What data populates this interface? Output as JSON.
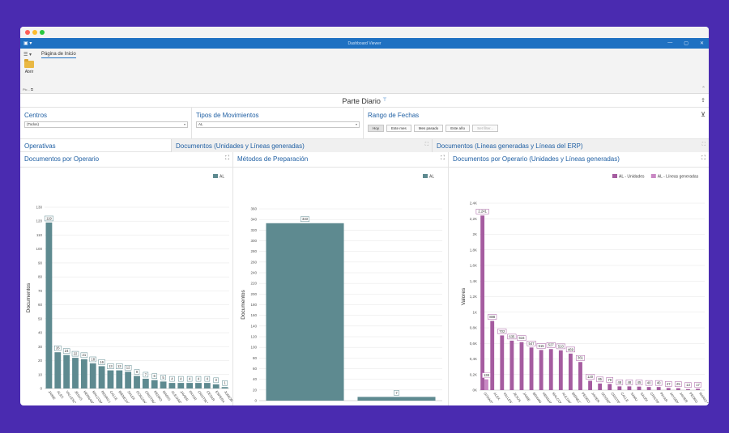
{
  "window": {
    "title": "Dashboard Viewer",
    "controls": [
      "—",
      "▢",
      "✕"
    ]
  },
  "ribbon": {
    "tab": "Página de Inicio",
    "open_label": "Abrir",
    "group_label": "Pic... ⧉"
  },
  "dashboard": {
    "title": "Parte Diario",
    "filter_glyph": "⊤"
  },
  "filters": {
    "centros": {
      "label": "Centros",
      "value": "(Todos)"
    },
    "tipos": {
      "label": "Tipos de Movimientos",
      "value": "AL"
    },
    "rango": {
      "label": "Rango de Fechas",
      "buttons": [
        "Hoy",
        "Este mes",
        "Mes pasado",
        "Este año",
        "Set filter..."
      ]
    }
  },
  "tabs": [
    {
      "label": "Operativas"
    },
    {
      "label": "Documentos (Unidades y Líneas generadas)"
    },
    {
      "label": "Documentos (Líneas generadas y Líneas del ERP)"
    }
  ],
  "colors": {
    "teal": "#5e8a90",
    "purple": "#a55ca0",
    "purple2": "#c988c4",
    "accent": "#1f71c2"
  },
  "chart_data": [
    {
      "type": "bar",
      "title": "Documentos por Operario",
      "ylabel": "Documentos",
      "ylim": [
        0,
        130
      ],
      "yticks": [
        0,
        10,
        20,
        30,
        40,
        50,
        60,
        70,
        80,
        90,
        100,
        110,
        120,
        130
      ],
      "categories": [
        "JAIME",
        "ALEX",
        "VALLESOL",
        "JESUS",
        "HERNANDOS",
        "MALCOM",
        "PEDRO LOPEZ",
        "CALLE",
        "BIENEZAR",
        "SAUDI",
        "GONZANTINO",
        "CRISTINA",
        "PEDRO",
        "MARIO",
        "ALEJANDRO",
        "JAVIER",
        "PAYAR",
        "CRISTIN NUÑEZ",
        "CESAR",
        "ESPERA",
        "JUNIOR"
      ],
      "series": [
        {
          "name": "AL",
          "values": [
            119,
            26,
            24,
            22,
            21,
            18,
            16,
            13,
            13,
            12,
            9,
            7,
            6,
            5,
            4,
            4,
            4,
            4,
            4,
            3,
            1
          ]
        }
      ]
    },
    {
      "type": "bar",
      "title": "Métodos de Preparación",
      "ylabel": "Documentos",
      "ylim": [
        0,
        360
      ],
      "yticks": [
        0,
        20,
        40,
        60,
        80,
        100,
        120,
        140,
        160,
        180,
        200,
        220,
        240,
        260,
        280,
        300,
        320,
        340,
        360
      ],
      "categories": [
        "DATAC",
        "JPACK"
      ],
      "series": [
        {
          "name": "AL",
          "values": [
            333,
            7
          ]
        }
      ]
    },
    {
      "type": "bar",
      "title": "Documentos por Operario (Unidades y Líneas generadas)",
      "ylabel": "Valores",
      "ylim": [
        0,
        2400
      ],
      "yticks": [
        "0K",
        "0,2K",
        "0,4K",
        "0,6K",
        "0,8K",
        "1K",
        "1,2K",
        "1,4K",
        "1,6K",
        "1,8K",
        "2K",
        "2,2K",
        "2,4K"
      ],
      "categories": [
        "GITANTINO",
        "ALEX",
        "VALLESOL",
        "JESUS",
        "JAIME",
        "BRAWN",
        "HERNANDOS",
        "MALCOM",
        "ALEJANDRO",
        "BIENEZAR",
        "PEDRO LOPEZ",
        "JAVIER",
        "ODVRRO",
        "CRISTINA",
        "CALLE",
        "SAMU",
        "SAUDI",
        "CRISTIN NUÑEZ",
        "PAYAR",
        "JAYSEN",
        "JAVIER",
        "PEDRO",
        "MARIO R"
      ],
      "series": [
        {
          "name": "AL - Unidades",
          "values": [
            2241,
            888,
            702,
            635,
            616,
            547,
            515,
            527,
            510,
            469,
            361,
            120,
            85,
            79,
            48,
            48,
            45,
            40,
            40,
            27,
            25,
            13,
            17
          ]
        },
        {
          "name": "AL - Líneas generadas",
          "values": [
            138,
            0,
            0,
            0,
            0,
            0,
            0,
            0,
            0,
            0,
            0,
            0,
            0,
            0,
            0,
            0,
            0,
            0,
            0,
            0,
            0,
            0,
            0
          ]
        }
      ],
      "labels": [
        "2.241",
        "888",
        "702",
        "635",
        "616",
        "547",
        "515",
        "527",
        "510",
        "469",
        "361",
        "120",
        "85",
        "79",
        "48",
        "48",
        "45",
        "40",
        "40",
        "27",
        "25",
        "13",
        "17"
      ],
      "low_label": "138"
    }
  ]
}
